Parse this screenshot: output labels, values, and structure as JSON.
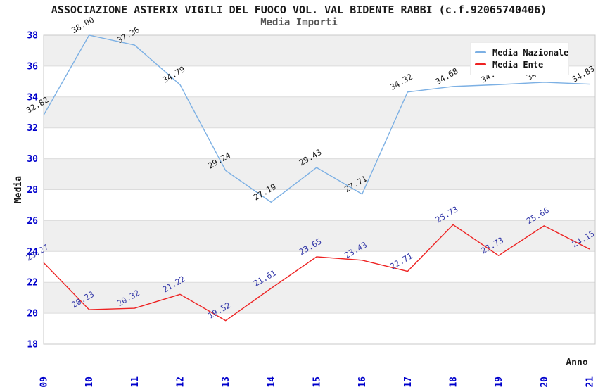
{
  "chart_data": {
    "type": "line",
    "title": "ASSOCIAZIONE ASTERIX VIGILI DEL FUOCO VOL. VAL BIDENTE RABBI (c.f.92065740406)",
    "subtitle": "Media Importi",
    "xlabel": "Anno",
    "ylabel": "Media",
    "categories": [
      "2009",
      "2010",
      "2011",
      "2012",
      "2013",
      "2014",
      "2015",
      "2016",
      "2017",
      "2018",
      "2019",
      "2020",
      "2021"
    ],
    "ylim": [
      18,
      38
    ],
    "ytick_step": 2,
    "grid": true,
    "legend_position": "top-right",
    "band_fill_ranges": [
      [
        20,
        22
      ],
      [
        24,
        26
      ],
      [
        28,
        30
      ],
      [
        32,
        34
      ],
      [
        36,
        38
      ]
    ],
    "series": [
      {
        "name": "Media Nazionale",
        "color": "#7cb0e4",
        "label_color": "#1a1a1a",
        "values": [
          32.82,
          38.0,
          37.36,
          34.79,
          29.24,
          27.19,
          29.43,
          27.71,
          34.32,
          34.68,
          34.8,
          34.95,
          34.83
        ]
      },
      {
        "name": "Media Ente",
        "color": "#ee2222",
        "label_color": "#3338a8",
        "values": [
          23.27,
          20.23,
          20.32,
          21.22,
          19.52,
          21.61,
          23.65,
          23.43,
          22.71,
          25.73,
          23.73,
          25.66,
          24.15
        ]
      }
    ],
    "colors": {
      "tick_label": "#0000cc",
      "band": "#efefef",
      "gridline": "#dcdcdc",
      "plot_border": "#c8c8c8",
      "background": "#ffffff"
    }
  }
}
